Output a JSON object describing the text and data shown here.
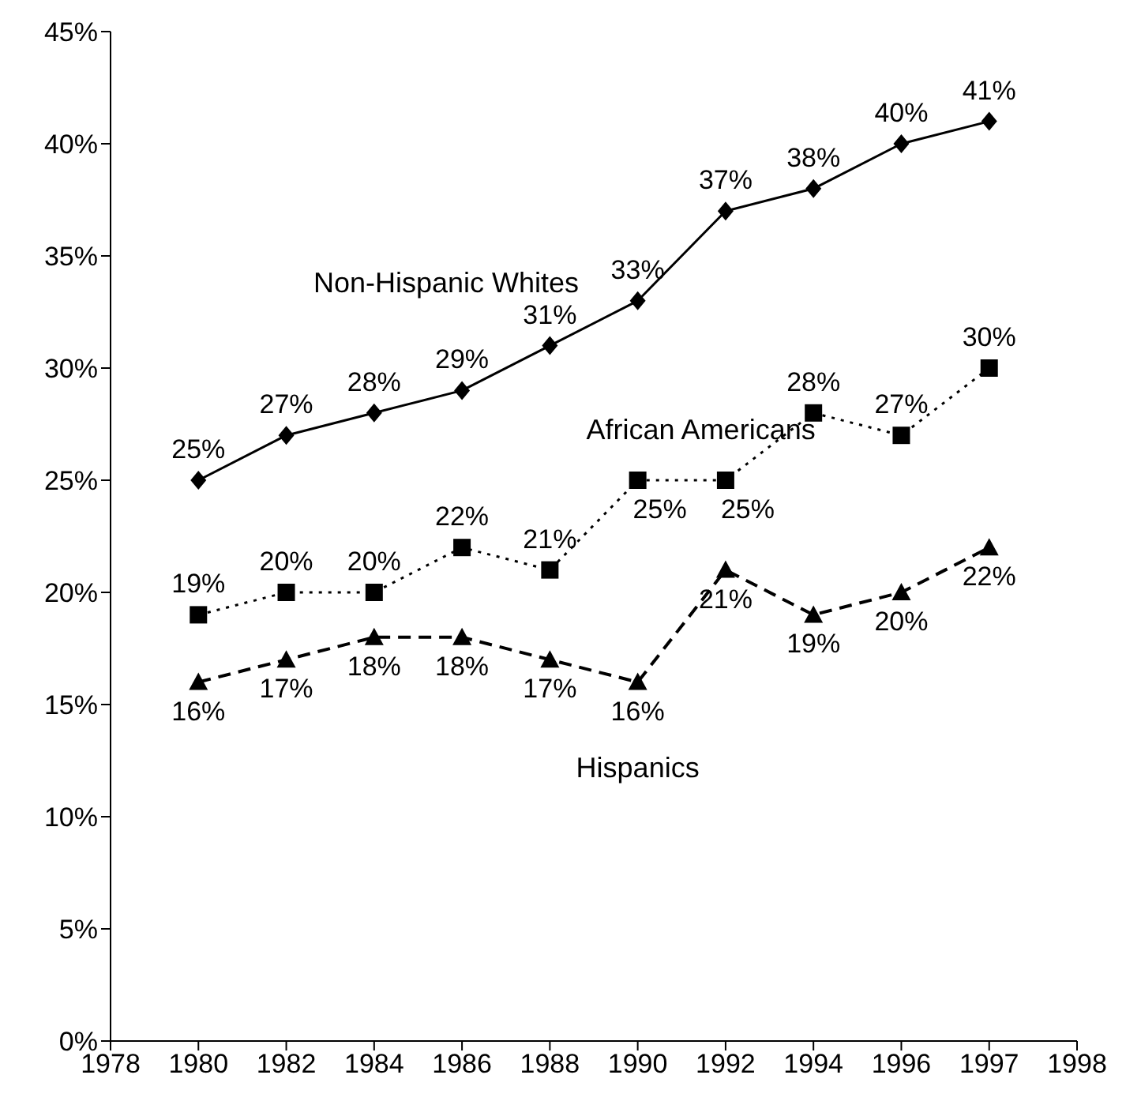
{
  "chart_data": {
    "type": "line",
    "categories": [
      "1978",
      "1980",
      "1982",
      "1984",
      "1986",
      "1988",
      "1990",
      "1992",
      "1994",
      "1996",
      "1997",
      "1998"
    ],
    "series": [
      {
        "name": "Non-Hispanic Whites",
        "color": "#000000",
        "marker": "diamond",
        "line_style": "solid",
        "values": [
          null,
          25,
          27,
          28,
          29,
          31,
          33,
          37,
          38,
          40,
          41,
          null
        ],
        "value_labels": [
          null,
          "25%",
          "27%",
          "28%",
          "29%",
          "31%",
          "33%",
          "37%",
          "38%",
          "40%",
          "41%",
          null
        ]
      },
      {
        "name": "African Americans",
        "color": "#000000",
        "marker": "square",
        "line_style": "dotted",
        "values": [
          null,
          19,
          20,
          20,
          22,
          21,
          25,
          25,
          28,
          27,
          30,
          null
        ],
        "value_labels": [
          null,
          "19%",
          "20%",
          "20%",
          "22%",
          "21%",
          "25%",
          "25%",
          "28%",
          "27%",
          "30%",
          null
        ]
      },
      {
        "name": "Hispanics",
        "color": "#000000",
        "marker": "triangle",
        "line_style": "dashed",
        "values": [
          null,
          16,
          17,
          18,
          18,
          17,
          16,
          21,
          19,
          20,
          22,
          null
        ],
        "value_labels": [
          null,
          "16%",
          "17%",
          "18%",
          "18%",
          "17%",
          "16%",
          "21%",
          "19%",
          "20%",
          "22%",
          null
        ]
      }
    ],
    "ylim": [
      0,
      45
    ],
    "yticks": [
      {
        "value": 0,
        "label": "0%"
      },
      {
        "value": 5,
        "label": "5%"
      },
      {
        "value": 10,
        "label": "10%"
      },
      {
        "value": 15,
        "label": "15%"
      },
      {
        "value": 20,
        "label": "20%"
      },
      {
        "value": 25,
        "label": "25%"
      },
      {
        "value": 30,
        "label": "30%"
      },
      {
        "value": 35,
        "label": "35%"
      },
      {
        "value": 40,
        "label": "40%"
      },
      {
        "value": 45,
        "label": "45%"
      }
    ],
    "grid": false,
    "legend": false
  }
}
